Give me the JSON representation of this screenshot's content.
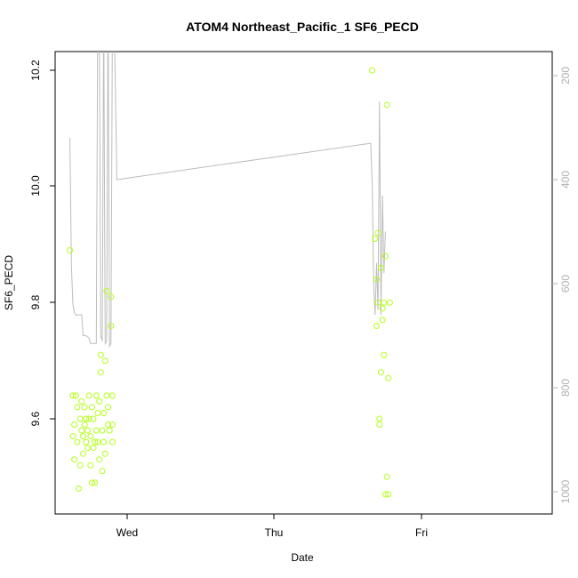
{
  "chart_data": {
    "type": "scatter",
    "title": "ATOM4 Northeast_Pacific_1 SF6_PECD",
    "xlabel": "Date",
    "ylabel": "SF6_PECD",
    "x_ticks": [
      "Wed",
      "Thu",
      "Fri"
    ],
    "y_ticks": [
      "9.6",
      "9.8",
      "10.0",
      "10.2"
    ],
    "y2_ticks": [
      "200",
      "400",
      "600",
      "800",
      "1000"
    ],
    "colors": {
      "points": "#b3ff1a",
      "pressure_line": "#bdbdbd",
      "axis": "#000000",
      "right_axis": "#b0b0b0"
    },
    "series": [
      {
        "values": [
          [
            -0.39,
            9.89
          ],
          [
            -0.37,
            9.64
          ],
          [
            -0.36,
            9.59
          ],
          [
            -0.37,
            9.57
          ],
          [
            -0.36,
            9.53
          ],
          [
            -0.35,
            9.64
          ],
          [
            -0.34,
            9.62
          ],
          [
            -0.34,
            9.56
          ],
          [
            -0.33,
            9.48
          ],
          [
            -0.32,
            9.6
          ],
          [
            -0.32,
            9.52
          ],
          [
            -0.31,
            9.58
          ],
          [
            -0.31,
            9.63
          ],
          [
            -0.3,
            9.57
          ],
          [
            -0.3,
            9.54
          ],
          [
            -0.29,
            9.62
          ],
          [
            -0.29,
            9.59
          ],
          [
            -0.28,
            9.6
          ],
          [
            -0.28,
            9.56
          ],
          [
            -0.27,
            9.58
          ],
          [
            -0.27,
            9.55
          ],
          [
            -0.26,
            9.6
          ],
          [
            -0.26,
            9.64
          ],
          [
            -0.25,
            9.57
          ],
          [
            -0.25,
            9.52
          ],
          [
            -0.24,
            9.49
          ],
          [
            -0.24,
            9.62
          ],
          [
            -0.23,
            9.6
          ],
          [
            -0.23,
            9.55
          ],
          [
            -0.22,
            9.56
          ],
          [
            -0.22,
            9.49
          ],
          [
            -0.21,
            9.64
          ],
          [
            -0.21,
            9.58
          ],
          [
            -0.2,
            9.61
          ],
          [
            -0.2,
            9.56
          ],
          [
            -0.19,
            9.53
          ],
          [
            -0.19,
            9.63
          ],
          [
            -0.18,
            9.68
          ],
          [
            -0.18,
            9.71
          ],
          [
            -0.17,
            9.58
          ],
          [
            -0.17,
            9.51
          ],
          [
            -0.16,
            9.61
          ],
          [
            -0.16,
            9.56
          ],
          [
            -0.15,
            9.7
          ],
          [
            -0.15,
            9.54
          ],
          [
            -0.14,
            9.82
          ],
          [
            -0.14,
            9.64
          ],
          [
            -0.13,
            9.59
          ],
          [
            -0.13,
            9.62
          ],
          [
            -0.12,
            9.58
          ],
          [
            -0.11,
            9.81
          ],
          [
            -0.11,
            9.76
          ],
          [
            -0.1,
            9.64
          ],
          [
            -0.1,
            9.59
          ],
          [
            -0.1,
            9.56
          ],
          [
            1.67,
            10.2
          ],
          [
            1.69,
            9.91
          ],
          [
            1.7,
            9.84
          ],
          [
            1.7,
            9.76
          ],
          [
            1.71,
            9.92
          ],
          [
            1.71,
            9.8
          ],
          [
            1.72,
            9.6
          ],
          [
            1.72,
            9.59
          ],
          [
            1.73,
            9.86
          ],
          [
            1.73,
            9.68
          ],
          [
            1.74,
            9.77
          ],
          [
            1.74,
            9.79
          ],
          [
            1.75,
            9.8
          ],
          [
            1.75,
            9.71
          ],
          [
            1.76,
            9.88
          ],
          [
            1.76,
            9.47
          ],
          [
            1.77,
            10.14
          ],
          [
            1.77,
            9.5
          ],
          [
            1.78,
            9.47
          ],
          [
            1.78,
            9.67
          ],
          [
            1.79,
            9.8
          ]
        ]
      }
    ],
    "pressure_series": {
      "values": [
        [
          -0.39,
          320
        ],
        [
          -0.38,
          565
        ],
        [
          -0.37,
          640
        ],
        [
          -0.36,
          655
        ],
        [
          -0.35,
          660
        ],
        [
          -0.33,
          660
        ],
        [
          -0.31,
          660
        ],
        [
          -0.3,
          700
        ],
        [
          -0.28,
          700
        ],
        [
          -0.26,
          705
        ],
        [
          -0.25,
          715
        ],
        [
          -0.23,
          715
        ],
        [
          -0.22,
          715
        ],
        [
          -0.21,
          715
        ],
        [
          -0.2,
          60
        ],
        [
          -0.19,
          60
        ],
        [
          -0.18,
          700
        ],
        [
          -0.17,
          710
        ],
        [
          -0.16,
          60
        ],
        [
          -0.15,
          715
        ],
        [
          -0.14,
          710
        ],
        [
          -0.13,
          60
        ],
        [
          -0.12,
          720
        ],
        [
          -0.11,
          715
        ],
        [
          -0.1,
          60
        ],
        [
          -0.09,
          60
        ],
        [
          -0.07,
          400
        ],
        [
          1.66,
          330
        ],
        [
          1.67,
          410
        ],
        [
          1.68,
          600
        ],
        [
          1.69,
          660
        ],
        [
          1.7,
          560
        ],
        [
          1.71,
          650
        ],
        [
          1.72,
          250
        ],
        [
          1.73,
          660
        ],
        [
          1.74,
          430
        ],
        [
          1.75,
          580
        ],
        [
          1.76,
          500
        ]
      ]
    },
    "xlim": [
      -0.45,
      1.85
    ],
    "ylim": [
      9.47,
      10.22
    ],
    "y2lim": [
      1000,
      200
    ],
    "grid": false
  }
}
